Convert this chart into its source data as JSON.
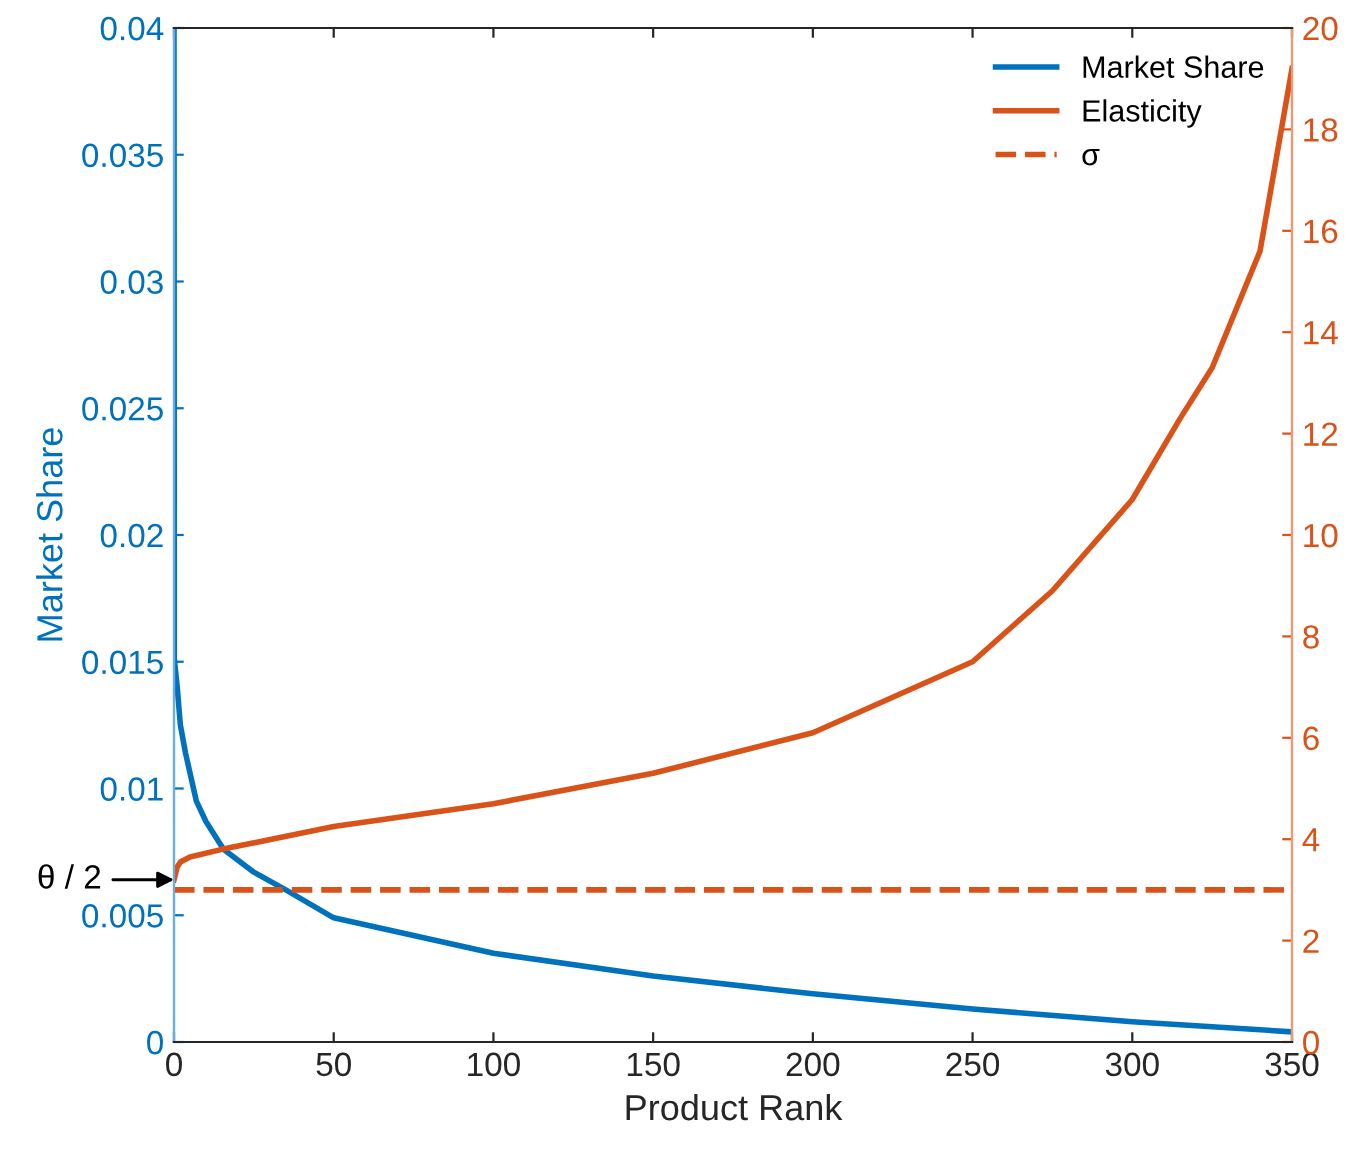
{
  "chart_data": {
    "type": "line",
    "xlabel": "Product Rank",
    "ylabel": "Market Share",
    "xlim": [
      0,
      350
    ],
    "xticks": [
      0,
      50,
      100,
      150,
      200,
      250,
      300,
      350
    ],
    "ylim": [
      0,
      0.04
    ],
    "yticks": [
      0,
      0.005,
      0.01,
      0.015,
      0.02,
      0.025,
      0.03,
      0.035,
      0.04
    ],
    "y2lim": [
      0,
      20
    ],
    "y2ticks": [
      0,
      2,
      4,
      6,
      8,
      10,
      12,
      14,
      16,
      18,
      20
    ],
    "series": [
      {
        "name": "Market Share",
        "color": "#0072bd",
        "x": [
          0,
          0.1,
          1,
          2,
          3.6,
          7,
          10,
          15.5,
          25,
          35,
          50,
          100,
          150,
          200,
          250,
          300,
          350
        ],
        "values": [
          0.04,
          0.0151,
          0.014,
          0.0125,
          0.0114,
          0.0095,
          0.0087,
          0.0076,
          0.0067,
          0.006,
          0.0049,
          0.0035,
          0.0026,
          0.0019,
          0.0013,
          0.0008,
          0.0004
        ]
      },
      {
        "name": "Elasticity",
        "color": "#d95319",
        "axis": "y2",
        "x": [
          0,
          1,
          2,
          5,
          15,
          50,
          100,
          150,
          200,
          250,
          275,
          300,
          315,
          325,
          340,
          350
        ],
        "values": [
          3.2,
          3.45,
          3.55,
          3.65,
          3.8,
          4.25,
          4.7,
          5.3,
          6.1,
          7.5,
          8.9,
          10.7,
          12.3,
          13.3,
          15.6,
          19.2
        ]
      }
    ],
    "ref_lines": [
      {
        "axis": "y2",
        "value": 3,
        "label": "σ",
        "color": "#d95319",
        "line_style": "dashed"
      }
    ],
    "annotations": [
      "θ / 2"
    ],
    "legend": "top right",
    "grid": false,
    "marker": "none",
    "line_style": "solid"
  }
}
